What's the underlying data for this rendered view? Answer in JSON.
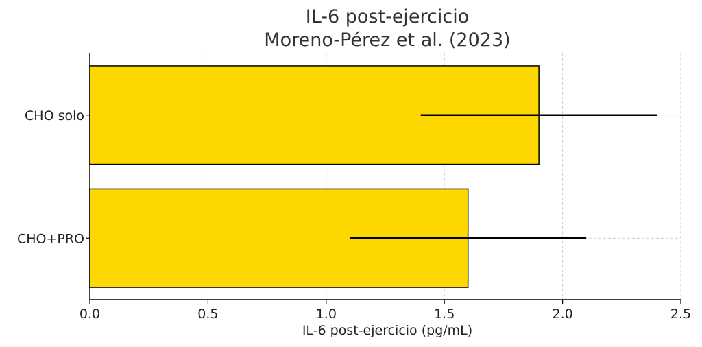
{
  "chart_data": {
    "type": "bar",
    "orientation": "horizontal",
    "title": [
      "IL-6 post-ejercicio",
      "Moreno-Pérez et al. (2023)"
    ],
    "xlabel": "IL-6 post-ejercicio (pg/mL)",
    "ylabel": "",
    "xlim": [
      0,
      2.5
    ],
    "xticks": [
      "0.0",
      "0.5",
      "1.0",
      "1.5",
      "2.0",
      "2.5"
    ],
    "categories": [
      "CHO solo",
      "CHO+PRO"
    ],
    "series": [
      {
        "values": [
          1.9,
          1.6
        ],
        "errors": [
          0.5,
          0.5
        ]
      }
    ],
    "grid": true,
    "colors": {
      "bar": "#FFD700",
      "edge": "#000000",
      "error_bar": "#000000"
    }
  }
}
